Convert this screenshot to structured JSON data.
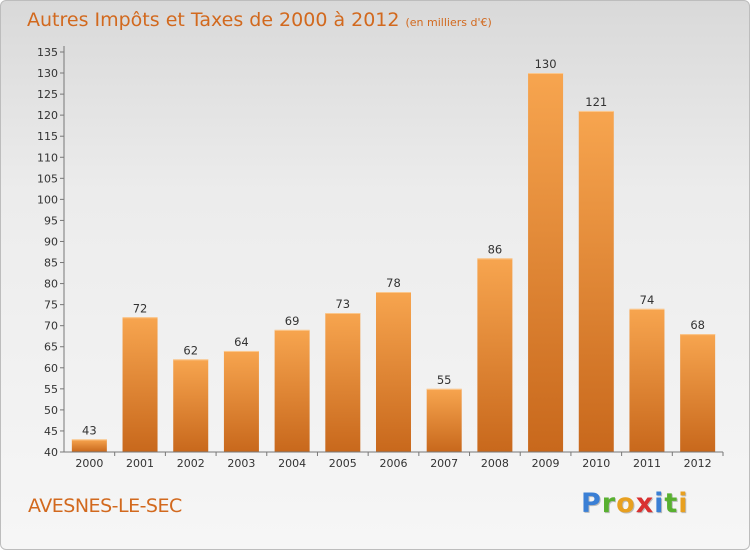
{
  "header": {
    "title": "Autres Impôts et Taxes de 2000 à 2012",
    "subtitle": "(en milliers d'€)"
  },
  "footer": {
    "commune": "AVESNES-LE-SEC",
    "brand_letters": [
      "P",
      "r",
      "o",
      "x",
      "i",
      "t",
      "i"
    ],
    "brand_colors": [
      "#3a7fd5",
      "#58b030",
      "#e8a020",
      "#d93030",
      "#3a7fd5",
      "#58b030",
      "#e8a020"
    ]
  },
  "chart_data": {
    "type": "bar",
    "title": "Autres Impôts et Taxes de 2000 à 2012",
    "subtitle": "(en milliers d'€)",
    "categories": [
      "2000",
      "2001",
      "2002",
      "2003",
      "2004",
      "2005",
      "2006",
      "2007",
      "2008",
      "2009",
      "2010",
      "2011",
      "2012"
    ],
    "values": [
      43,
      72,
      62,
      64,
      69,
      73,
      78,
      55,
      86,
      130,
      121,
      74,
      68
    ],
    "ylim": [
      40,
      135
    ],
    "ytick_step": 5,
    "grid": false,
    "bar_color_top": "#f7a54f",
    "bar_color_bottom": "#c8681c",
    "xlabel": "",
    "ylabel": ""
  }
}
